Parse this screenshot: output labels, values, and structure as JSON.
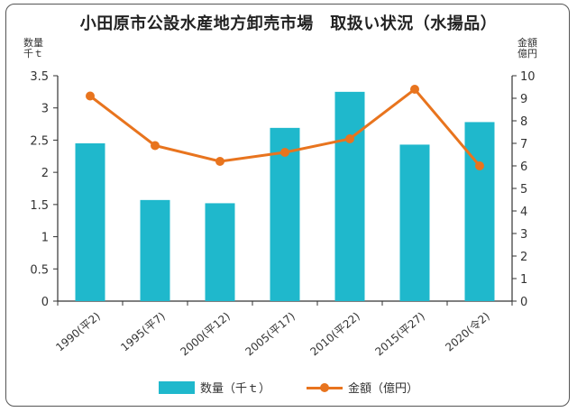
{
  "title": "小田原市公設水産地方卸売市場　取扱い状況（水揚品）",
  "left_unit": [
    "数量",
    "千ｔ"
  ],
  "right_unit": [
    "金額",
    "億円"
  ],
  "legend": {
    "bar_label": "数量（千ｔ）",
    "line_label": "金額（億円）"
  },
  "colors": {
    "bar": "#1fb8cc",
    "line": "#e8741e"
  },
  "chart_data": {
    "type": "bar+line",
    "title": "小田原市公設水産地方卸売市場　取扱い状況（水揚品）",
    "categories": [
      "1990(平2)",
      "1995(平7)",
      "2000(平12)",
      "2005(平17)",
      "2010(平22)",
      "2015(平27)",
      "2020(令2)"
    ],
    "series": [
      {
        "name": "数量（千ｔ）",
        "type": "bar",
        "axis": "left",
        "values": [
          2.45,
          1.57,
          1.52,
          2.69,
          3.25,
          2.43,
          2.78
        ]
      },
      {
        "name": "金額（億円）",
        "type": "line",
        "axis": "right",
        "values": [
          9.1,
          6.9,
          6.2,
          6.6,
          7.2,
          9.4,
          6.0
        ]
      }
    ],
    "left_ylim": [
      0,
      3.5
    ],
    "left_ticks": [
      0,
      0.5,
      1,
      1.5,
      2,
      2.5,
      3,
      3.5
    ],
    "right_ylim": [
      0,
      10
    ],
    "right_ticks": [
      0,
      1,
      2,
      3,
      4,
      5,
      6,
      7,
      8,
      9,
      10
    ],
    "grid": false,
    "legend_position": "bottom"
  }
}
